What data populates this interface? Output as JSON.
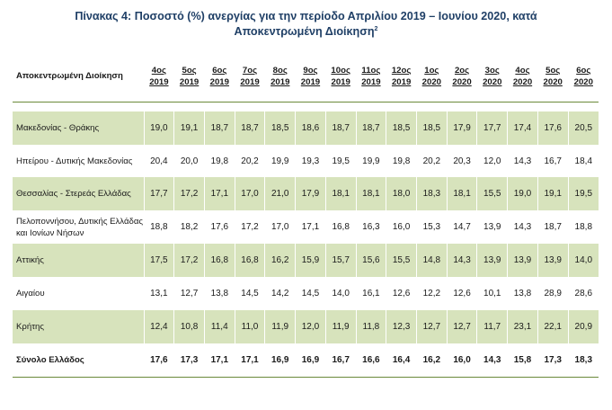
{
  "title": {
    "line1": "Πίνακας 4: Ποσοστό (%) ανεργίας για την περίοδο Απριλίου 2019 – Ιουνίου 2020, κατά",
    "line2": "Αποκεντρωμένη Διοίκηση",
    "footnote": "2"
  },
  "header": {
    "region_label": "Αποκεντρωμένη Διοίκηση",
    "months": [
      {
        "month": "4ος",
        "year": "2019"
      },
      {
        "month": "5ος",
        "year": "2019"
      },
      {
        "month": "6ος",
        "year": "2019"
      },
      {
        "month": "7ος",
        "year": "2019"
      },
      {
        "month": "8ος",
        "year": "2019"
      },
      {
        "month": "9ος",
        "year": "2019"
      },
      {
        "month": "10ος",
        "year": "2019"
      },
      {
        "month": "11ος",
        "year": "2019"
      },
      {
        "month": "12ος",
        "year": "2019"
      },
      {
        "month": "1ος",
        "year": "2020"
      },
      {
        "month": "2ος",
        "year": "2020"
      },
      {
        "month": "3ος",
        "year": "2020"
      },
      {
        "month": "4ος",
        "year": "2020"
      },
      {
        "month": "5ος",
        "year": "2020"
      },
      {
        "month": "6ος",
        "year": "2020"
      }
    ]
  },
  "rows": [
    {
      "region": "Μακεδονίας - Θράκης",
      "values": [
        "19,0",
        "19,1",
        "18,7",
        "18,7",
        "18,5",
        "18,6",
        "18,7",
        "18,7",
        "18,5",
        "18,5",
        "17,9",
        "17,7",
        "17,4",
        "17,6",
        "20,5"
      ]
    },
    {
      "region": "Ηπείρου - Δυτικής Μακεδονίας",
      "values": [
        "20,4",
        "20,0",
        "19,8",
        "20,2",
        "19,9",
        "19,3",
        "19,5",
        "19,9",
        "19,8",
        "20,2",
        "20,3",
        "12,0",
        "14,3",
        "16,7",
        "18,4"
      ]
    },
    {
      "region": "Θεσσαλίας - Στερεάς Ελλάδας",
      "values": [
        "17,7",
        "17,2",
        "17,1",
        "17,0",
        "21,0",
        "17,9",
        "18,1",
        "18,1",
        "18,0",
        "18,3",
        "18,1",
        "15,5",
        "19,0",
        "19,1",
        "19,5"
      ]
    },
    {
      "region": "Πελοποννήσου, Δυτικής Ελλάδας και Ιονίων Νήσων",
      "values": [
        "18,8",
        "18,2",
        "17,6",
        "17,2",
        "17,0",
        "17,1",
        "16,8",
        "16,3",
        "16,0",
        "15,3",
        "14,7",
        "13,9",
        "14,3",
        "18,7",
        "18,8"
      ]
    },
    {
      "region": "Αττικής",
      "values": [
        "17,5",
        "17,2",
        "16,8",
        "16,8",
        "16,2",
        "15,9",
        "15,7",
        "15,6",
        "15,5",
        "14,8",
        "14,3",
        "13,9",
        "13,9",
        "13,9",
        "14,0"
      ]
    },
    {
      "region": "Αιγαίου",
      "values": [
        "13,1",
        "12,7",
        "13,8",
        "14,5",
        "14,2",
        "14,5",
        "14,0",
        "16,1",
        "12,6",
        "12,2",
        "12,6",
        "10,1",
        "13,8",
        "28,9",
        "28,6"
      ]
    },
    {
      "region": "Κρήτης",
      "values": [
        "12,4",
        "10,8",
        "11,4",
        "11,0",
        "11,9",
        "12,0",
        "11,9",
        "11,8",
        "12,3",
        "12,7",
        "12,7",
        "11,7",
        "23,1",
        "22,1",
        "20,9"
      ]
    },
    {
      "region": "Σύνολο Ελλάδος",
      "values": [
        "17,6",
        "17,3",
        "17,1",
        "17,1",
        "16,9",
        "16,9",
        "16,7",
        "16,6",
        "16,4",
        "16,2",
        "16,0",
        "14,3",
        "15,8",
        "17,3",
        "18,3"
      ]
    }
  ],
  "colors": {
    "title": "#1f3f66",
    "band": "#d7e3bc",
    "rule": "#6b8a3a"
  }
}
